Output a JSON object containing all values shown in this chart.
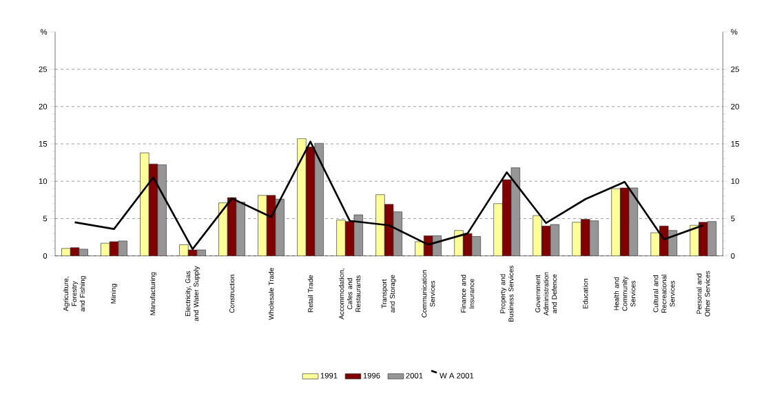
{
  "chart_data": {
    "type": "bar",
    "categories": [
      "Agriculture, Forestry and Fishing",
      "Mining",
      "Manufacturing",
      "Electricity, Gas and Water Supply",
      "Construction",
      "Wholesale Trade",
      "Retail Trade",
      "Accommodation, Cafes and Restaurants",
      "Transport and Storage",
      "Communication Services",
      "Finance and Insurance",
      "Property and Business Services",
      "Government Administration and Defence",
      "Education",
      "Health and Community Services",
      "Cultural and Recreational Services",
      "Personal and Other Services"
    ],
    "series": [
      {
        "name": "1991",
        "color": "#ffff99",
        "values": [
          1.0,
          1.7,
          13.8,
          1.5,
          7.1,
          8.1,
          15.7,
          4.8,
          8.2,
          1.9,
          3.4,
          7.0,
          5.4,
          4.5,
          9.0,
          3.1,
          4.1
        ]
      },
      {
        "name": "1996",
        "color": "#800000",
        "values": [
          1.1,
          1.9,
          12.3,
          0.8,
          7.8,
          8.1,
          14.6,
          4.6,
          6.9,
          2.7,
          3.0,
          10.2,
          4.0,
          4.9,
          9.1,
          4.0,
          4.5
        ]
      },
      {
        "name": "2001",
        "color": "#969696",
        "values": [
          0.9,
          2.0,
          12.2,
          0.8,
          7.2,
          7.6,
          15.1,
          5.5,
          5.9,
          2.7,
          2.6,
          11.8,
          4.2,
          4.7,
          9.1,
          3.4,
          4.6
        ]
      },
      {
        "name": "W A 2001",
        "type": "line",
        "color": "#000000",
        "values": [
          4.5,
          3.6,
          10.5,
          0.9,
          7.7,
          5.2,
          15.3,
          4.7,
          4.1,
          1.5,
          3.0,
          11.2,
          4.4,
          7.6,
          9.9,
          2.2,
          4.1
        ]
      }
    ],
    "ylim": [
      0,
      30
    ],
    "yticks": [
      0,
      5,
      10,
      15,
      20,
      25,
      {
        "value": 30,
        "label": "%"
      }
    ],
    "y2lim": [
      0,
      30
    ],
    "y2ticks": [
      0,
      5,
      10,
      15,
      20,
      25,
      {
        "value": 30,
        "label": "%"
      }
    ],
    "grid": "y",
    "legend": "bottom",
    "marker": "none"
  }
}
